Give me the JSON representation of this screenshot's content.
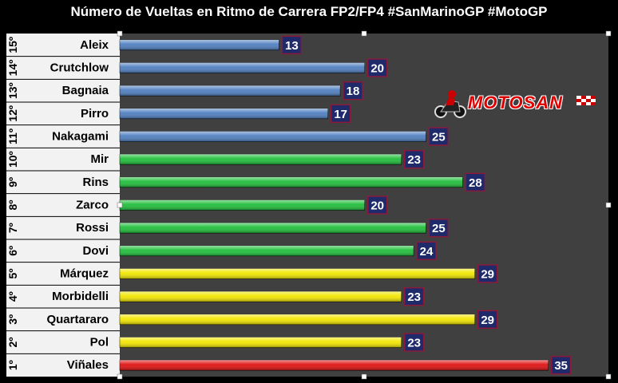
{
  "chart_data": {
    "type": "bar",
    "orientation": "horizontal",
    "title": "Número de Vueltas en Ritmo de Carrera FP2/FP4 #SanMarinoGP #MotoGP",
    "positions": [
      "15º",
      "14º",
      "13º",
      "12º",
      "11º",
      "10º",
      "9º",
      "8º",
      "7º",
      "6º",
      "5º",
      "4º",
      "3º",
      "2º",
      "1º"
    ],
    "categories": [
      "Aleix",
      "Crutchlow",
      "Bagnaia",
      "Pirro",
      "Nakagami",
      "Mir",
      "Rins",
      "Zarco",
      "Rossi",
      "Dovi",
      "Márquez",
      "Morbidelli",
      "Quartararo",
      "Pol",
      "Viñales"
    ],
    "values": [
      13,
      20,
      18,
      17,
      25,
      23,
      28,
      20,
      25,
      24,
      29,
      23,
      29,
      23,
      35
    ],
    "bar_colors": [
      "#4f7fc0",
      "#4f7fc0",
      "#4f7fc0",
      "#4f7fc0",
      "#4f7fc0",
      "#1fbf3a",
      "#1fbf3a",
      "#1fbf3a",
      "#1fbf3a",
      "#1fbf3a",
      "#f2e600",
      "#f2e600",
      "#f2e600",
      "#f2e600",
      "#e01010"
    ],
    "xlim": [
      0,
      36
    ],
    "grid": false,
    "legend": "none",
    "data_labels": true
  },
  "colors": {
    "background": "#000000",
    "plot_area": "#404040",
    "label_area": "#f2f2f2",
    "data_label_bg": "#1f2a6b",
    "data_label_text": "#ffffff",
    "logo_red": "#e00000"
  },
  "logo": {
    "text": "MOTOSAN",
    "icon": "motorcycle-rider-icon"
  }
}
